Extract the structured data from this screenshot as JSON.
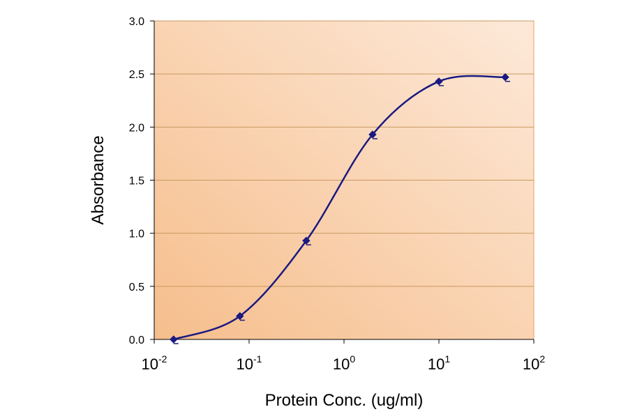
{
  "chart_data": {
    "type": "line",
    "title": "",
    "xlabel": "Protein Conc. (ug/ml)",
    "ylabel": "Absorbance",
    "x_scale": "log",
    "xlim": [
      0.01,
      100
    ],
    "ylim": [
      0,
      3
    ],
    "x_ticks": [
      {
        "value": 0.01,
        "base": "10",
        "exp": "-2"
      },
      {
        "value": 0.1,
        "base": "10",
        "exp": "-1"
      },
      {
        "value": 1,
        "base": "10",
        "exp": "0"
      },
      {
        "value": 10,
        "base": "10",
        "exp": "1"
      },
      {
        "value": 100,
        "base": "10",
        "exp": "2"
      }
    ],
    "y_ticks": [
      "0.0",
      "0.5",
      "1.0",
      "1.5",
      "2.0",
      "2.5",
      "3.0"
    ],
    "grid": "horizontal",
    "legend": "none",
    "series": [
      {
        "x": [
          0.016,
          0.08,
          0.4,
          2,
          10,
          50
        ],
        "y": [
          0.0,
          0.22,
          0.93,
          1.93,
          2.43,
          2.47
        ]
      }
    ],
    "colors": {
      "line": "#1a1a80",
      "marker": "#1a1a80",
      "plot_bg_light": "#fde9d9",
      "plot_bg_dark": "#f6be8c",
      "plot_border": "#e8a060",
      "grid": "#c89a60"
    }
  }
}
